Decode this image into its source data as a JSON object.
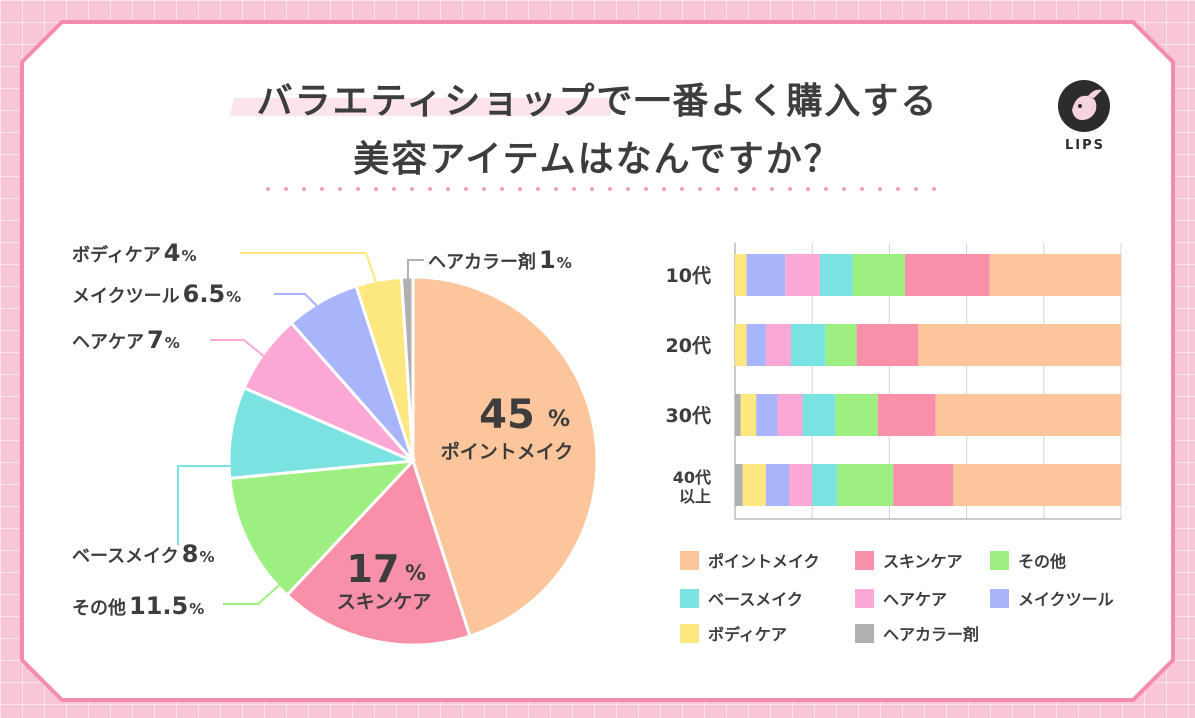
{
  "title": {
    "line1": "バラエティショップで一番よく購入する",
    "line2": "美容アイテムはなんですか？"
  },
  "logo": {
    "text": "LIPS",
    "icon": "deer-logo-icon"
  },
  "colors": {
    "background": "#f9c6d8",
    "card": "#ffffff",
    "card_border": "#f48cb0",
    "divider_dots": "#f4a0be"
  },
  "chart_data": [
    {
      "type": "pie",
      "slices": [
        {
          "label": "ポイントメイク",
          "value": 45,
          "display": "45%",
          "color": "#fcc59b"
        },
        {
          "label": "スキンケア",
          "value": 17,
          "display": "17%",
          "color": "#f990a9"
        },
        {
          "label": "その他",
          "value": 11.5,
          "display": "11.5%",
          "color": "#9eef82"
        },
        {
          "label": "ベースメイク",
          "value": 8,
          "display": "8%",
          "color": "#7be2e2"
        },
        {
          "label": "ヘアケア",
          "value": 7,
          "display": "7%",
          "color": "#fba8d6"
        },
        {
          "label": "メイクツール",
          "value": 6.5,
          "display": "6.5%",
          "color": "#a8b5fb"
        },
        {
          "label": "ボディケア",
          "value": 4,
          "display": "4%",
          "color": "#fce87e"
        },
        {
          "label": "ヘアカラー剤",
          "value": 1,
          "display": "1%",
          "color": "#b0b0b0"
        }
      ]
    },
    {
      "type": "bar",
      "orientation": "horizontal",
      "stacked": true,
      "categories": [
        "10代",
        "20代",
        "30代",
        "40代\n以上"
      ],
      "grid": true,
      "legend_position": "bottom",
      "series": [
        {
          "name": "ヘアカラー剤",
          "color": "#b0b0b0",
          "values": [
            0,
            0,
            1.5,
            2
          ]
        },
        {
          "name": "ボディケア",
          "color": "#fce87e",
          "values": [
            3,
            3,
            4,
            6
          ]
        },
        {
          "name": "メイクツール",
          "color": "#a8b5fb",
          "values": [
            10,
            5,
            5.5,
            6
          ]
        },
        {
          "name": "ヘアケア",
          "color": "#fba8d6",
          "values": [
            9,
            6.5,
            6.5,
            6
          ]
        },
        {
          "name": "ベースメイク",
          "color": "#7be2e2",
          "values": [
            8.5,
            9,
            8.5,
            6.5
          ]
        },
        {
          "name": "その他",
          "color": "#9eef82",
          "values": [
            13.5,
            8,
            11,
            14.5
          ]
        },
        {
          "name": "スキンケア",
          "color": "#f990a9",
          "values": [
            22,
            16,
            15,
            15.5
          ]
        },
        {
          "name": "ポイントメイク",
          "color": "#fcc59b",
          "values": [
            34,
            52.5,
            48,
            43.5
          ]
        }
      ],
      "legend_order": [
        "ポイントメイク",
        "スキンケア",
        "その他",
        "ベースメイク",
        "ヘアケア",
        "メイクツール",
        "ボディケア",
        "ヘアカラー剤"
      ]
    }
  ]
}
